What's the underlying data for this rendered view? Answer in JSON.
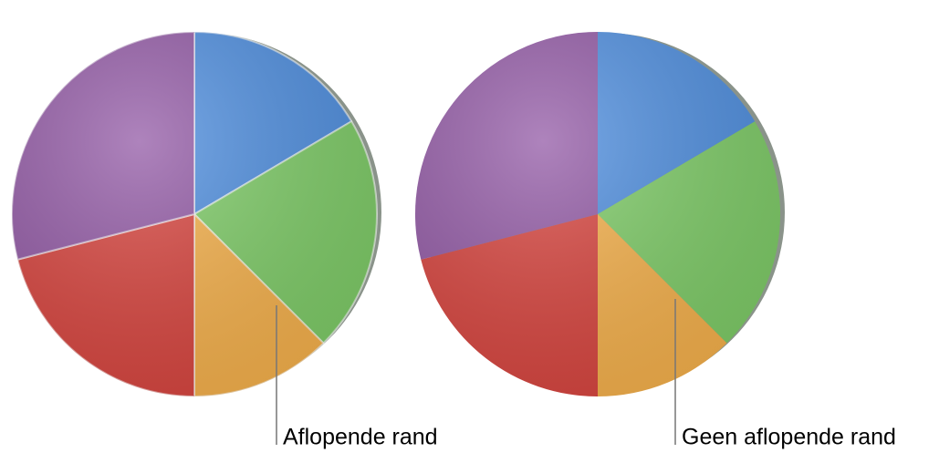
{
  "chart_data": [
    {
      "type": "pie",
      "annotation": "Aflopende rand",
      "bevel": true,
      "values": [
        16.5,
        21,
        12.5,
        21,
        29
      ],
      "colors": [
        "#4f8fe0",
        "#7fcd68",
        "#f7b24c",
        "#d9453f",
        "#935aa6"
      ]
    },
    {
      "type": "pie",
      "annotation": "Geen aflopende rand",
      "bevel": false,
      "values": [
        16.5,
        21,
        12.5,
        21,
        29
      ],
      "colors": [
        "#4f8fe0",
        "#7fcd68",
        "#f7b24c",
        "#d9453f",
        "#935aa6"
      ]
    }
  ]
}
